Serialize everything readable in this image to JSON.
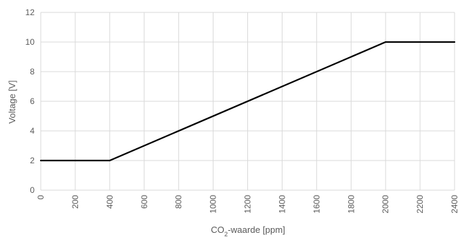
{
  "chart_data": {
    "type": "line",
    "title": "",
    "xlabel_parts": {
      "pre": "CO",
      "sub": "2",
      "post": "-waarde [ppm]"
    },
    "ylabel": "Voltage [V]",
    "xlim": [
      0,
      2400
    ],
    "ylim": [
      0,
      12
    ],
    "x_ticks": [
      "0",
      "200",
      "400",
      "600",
      "800",
      "1000",
      "1200",
      "1400",
      "1600",
      "1800",
      "2000",
      "2200",
      "2400"
    ],
    "y_ticks": [
      "0",
      "2",
      "4",
      "6",
      "8",
      "10",
      "12"
    ],
    "grid": true,
    "legend": "none",
    "series": [
      {
        "color": "#000000",
        "x": [
          0,
          400,
          2000,
          2400
        ],
        "y": [
          2,
          2,
          10,
          10
        ]
      }
    ]
  }
}
